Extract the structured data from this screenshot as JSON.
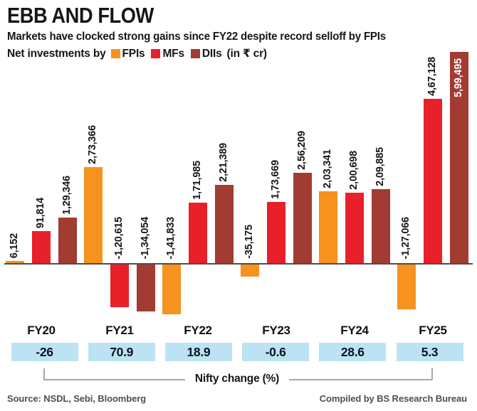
{
  "header": {
    "title": "EBB AND FLOW",
    "subtitle": "Markets have clocked strong gains since FY22 despite record selloff by FPIs",
    "legend_prefix": "Net investments by",
    "legend_suffix": "(in ₹ cr)",
    "legend": [
      {
        "label": "FPIs",
        "color": "#F6921E"
      },
      {
        "label": "MFs",
        "color": "#E8202A"
      },
      {
        "label": "DIIs",
        "color": "#A23B31"
      }
    ]
  },
  "colors": {
    "fpi": "#F6921E",
    "mf": "#E8202A",
    "dii": "#A23B31",
    "nifty_box": "#BCE3F3",
    "zero_line": "#4d4d4d"
  },
  "chart_data": {
    "type": "bar",
    "title": "EBB AND FLOW",
    "unit": "₹ cr",
    "categories": [
      "FY20",
      "FY21",
      "FY22",
      "FY23",
      "FY24",
      "FY25"
    ],
    "series": [
      {
        "name": "FPIs",
        "color": "#F6921E",
        "values": [
          6152,
          273366,
          -141833,
          -35175,
          203341,
          -127066
        ],
        "labels": [
          "6,152",
          "2,73,366",
          "-1,41,833",
          "-35,175",
          "2,03,341",
          "-1,27,066"
        ]
      },
      {
        "name": "MFs",
        "color": "#E8202A",
        "values": [
          91814,
          -120615,
          171985,
          173669,
          200698,
          467128
        ],
        "labels": [
          "91,814",
          "-1,20,615",
          "1,71,985",
          "1,73,669",
          "2,00,698",
          "4,67,128"
        ]
      },
      {
        "name": "DIIs",
        "color": "#A23B31",
        "values": [
          129346,
          -134054,
          221389,
          256209,
          209885,
          599495
        ],
        "labels": [
          "1,29,346",
          "-1,34,054",
          "2,21,389",
          "2,56,209",
          "2,09,885",
          "5,99,495"
        ]
      }
    ],
    "nifty_change": {
      "label": "Nifty change (%)",
      "values": [
        "-26",
        "70.9",
        "18.9",
        "-0.6",
        "28.6",
        "5.3"
      ]
    },
    "ylim": [
      -160000,
      620000
    ],
    "grid": false,
    "legend_position": "top"
  },
  "footer": {
    "source": "Source: NSDL, Sebi, Bloomberg",
    "compiled": "Compiled by BS Research Bureau"
  }
}
